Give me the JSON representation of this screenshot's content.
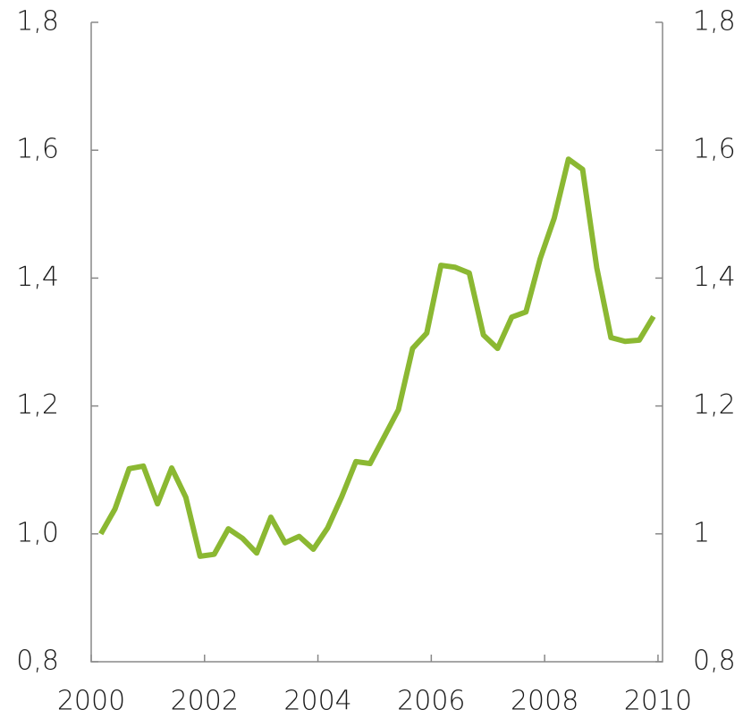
{
  "chart_data": {
    "type": "line",
    "x": [
      2000.17,
      2000.42,
      2000.67,
      2000.92,
      2001.17,
      2001.42,
      2001.67,
      2001.92,
      2002.17,
      2002.42,
      2002.67,
      2002.92,
      2003.17,
      2003.42,
      2003.67,
      2003.92,
      2004.17,
      2004.42,
      2004.67,
      2004.92,
      2005.17,
      2005.42,
      2005.67,
      2005.92,
      2006.17,
      2006.42,
      2006.67,
      2006.92,
      2007.17,
      2007.42,
      2007.67,
      2007.92,
      2008.17,
      2008.42,
      2008.67,
      2008.92,
      2009.17,
      2009.42,
      2009.67,
      2009.92
    ],
    "series": [
      {
        "color": "#8bb832",
        "values": [
          1.0,
          1.039,
          1.102,
          1.106,
          1.047,
          1.103,
          1.057,
          0.965,
          0.968,
          1.008,
          0.993,
          0.97,
          1.026,
          0.986,
          0.996,
          0.976,
          1.009,
          1.058,
          1.113,
          1.11,
          1.152,
          1.194,
          1.29,
          1.314,
          1.42,
          1.417,
          1.408,
          1.311,
          1.29,
          1.339,
          1.347,
          1.43,
          1.494,
          1.586,
          1.57,
          1.416,
          1.307,
          1.301,
          1.303,
          1.34
        ]
      }
    ],
    "xlim": [
      2000,
      2010.08
    ],
    "xticks": [
      2000,
      2002,
      2004,
      2006,
      2008,
      2010
    ],
    "ylim": [
      0.8,
      1.8
    ],
    "yticks": [
      {
        "value": 0.8,
        "label": "0,8"
      },
      {
        "value": 1.0,
        "label": "1,0"
      },
      {
        "value": 1.2,
        "label": "1,2"
      },
      {
        "value": 1.4,
        "label": "1,4"
      },
      {
        "value": 1.6,
        "label": "1,6"
      },
      {
        "value": 1.8,
        "label": "1,8"
      }
    ],
    "y2lim": [
      0.8,
      1.8
    ],
    "y2ticks": [
      {
        "value": 0.8,
        "label": "0,8"
      },
      1,
      {
        "value": 1.2,
        "label": "1,2"
      },
      {
        "value": 1.4,
        "label": "1,4"
      },
      {
        "value": 1.6,
        "label": "1,6"
      },
      {
        "value": 1.8,
        "label": "1,8"
      }
    ]
  }
}
